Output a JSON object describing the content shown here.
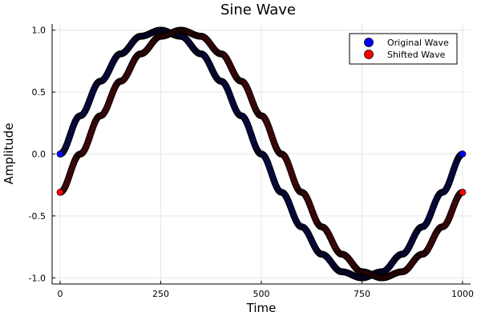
{
  "chart_data": {
    "type": "scatter",
    "title": "Sine Wave",
    "xlabel": "Time",
    "ylabel": "Amplitude",
    "xlim": [
      -20,
      1020
    ],
    "ylim": [
      -1.05,
      1.05
    ],
    "xticks": [
      0,
      250,
      500,
      750,
      1000
    ],
    "yticks": [
      -1.0,
      -0.5,
      0.0,
      0.5,
      1.0
    ],
    "xtick_labels": [
      "0",
      "250",
      "500",
      "750",
      "1000"
    ],
    "ytick_labels": [
      "-1.0",
      "-0.5",
      "0.0",
      "0.5",
      "1.0"
    ],
    "grid": true,
    "legend_position": "top-right",
    "series": [
      {
        "name": "Original Wave",
        "color": "#0000ff",
        "edge_color": "#000000",
        "x": [
          0,
          50,
          100,
          150,
          200,
          250,
          300,
          350,
          400,
          450,
          500,
          550,
          600,
          650,
          700,
          750,
          800,
          850,
          900,
          950,
          1000
        ],
        "y": [
          0.0,
          0.309,
          0.588,
          0.809,
          0.951,
          1.0,
          0.951,
          0.809,
          0.588,
          0.309,
          0.0,
          -0.309,
          -0.588,
          -0.809,
          -0.951,
          -1.0,
          -0.951,
          -0.809,
          -0.588,
          -0.309,
          0.0
        ]
      },
      {
        "name": "Shifted Wave",
        "color": "#ff0000",
        "edge_color": "#000000",
        "x": [
          0,
          50,
          100,
          150,
          200,
          250,
          300,
          350,
          400,
          450,
          500,
          550,
          600,
          650,
          700,
          750,
          800,
          850,
          900,
          950,
          1000
        ],
        "y": [
          -0.309,
          0.0,
          0.309,
          0.588,
          0.809,
          0.951,
          1.0,
          0.951,
          0.809,
          0.588,
          0.309,
          0.0,
          -0.309,
          -0.588,
          -0.809,
          -0.951,
          -1.0,
          -0.951,
          -0.809,
          -0.588,
          -0.309
        ]
      }
    ]
  }
}
